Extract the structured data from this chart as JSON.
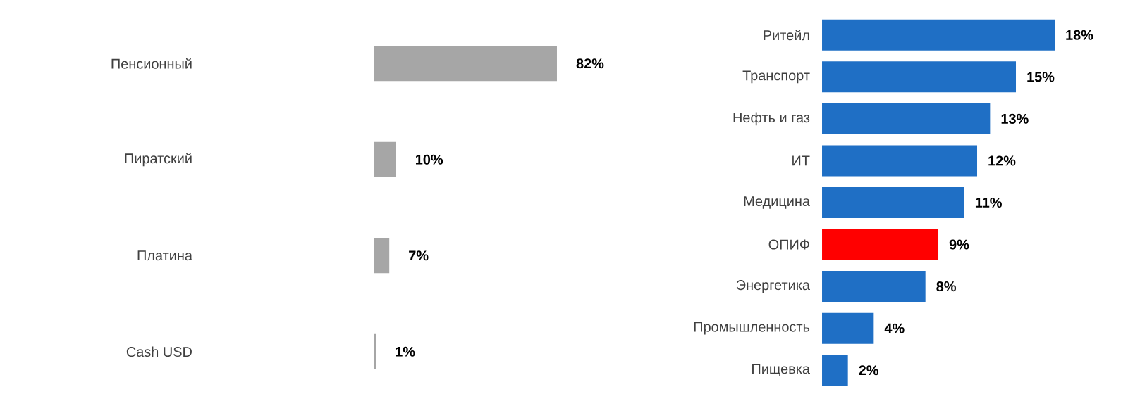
{
  "chart_data": [
    {
      "type": "bar",
      "orientation": "horizontal",
      "categories": [
        "Пенсионный",
        "Пиратский",
        "Платина",
        "Cash USD"
      ],
      "values": [
        82,
        10,
        7,
        1
      ],
      "color": "#a6a6a6",
      "value_labels": [
        "82%",
        "10%",
        "7%",
        "1%"
      ]
    },
    {
      "type": "bar",
      "orientation": "horizontal",
      "categories": [
        "Ритейл",
        "Транспорт",
        "Нефть и газ",
        "ИТ",
        "Медицина",
        "ОПИФ",
        "Энергетика",
        "Промышленность",
        "Пищевка"
      ],
      "values": [
        18,
        15,
        13,
        12,
        11,
        9,
        8,
        4,
        2
      ],
      "colors": [
        "#1f6fc5",
        "#1f6fc5",
        "#1f6fc5",
        "#1f6fc5",
        "#1f6fc5",
        "#ff0000",
        "#1f6fc5",
        "#1f6fc5",
        "#1f6fc5"
      ],
      "value_labels": [
        "18%",
        "15%",
        "13%",
        "12%",
        "11%",
        "9%",
        "8%",
        "4%",
        "2%"
      ]
    }
  ]
}
